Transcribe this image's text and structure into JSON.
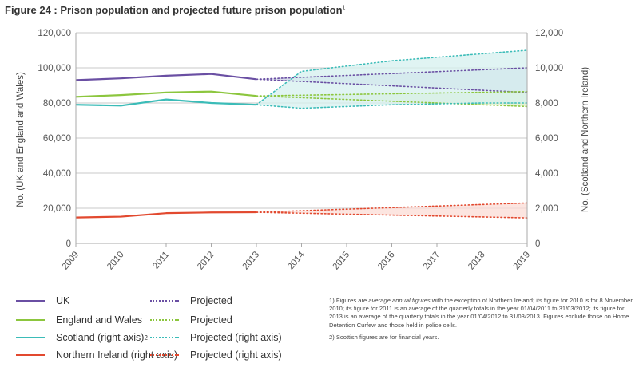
{
  "figure": {
    "title": "Figure 24 : Prison population and projected future prison population",
    "title_sup": "1"
  },
  "chart_data": {
    "type": "line",
    "title": "Figure 24 : Prison population and projected future prison population",
    "x": [
      2009,
      2010,
      2011,
      2012,
      2013,
      2014,
      2015,
      2016,
      2017,
      2018,
      2019
    ],
    "x_tick_labels": [
      "2009",
      "2010",
      "2011",
      "2012",
      "2013",
      "2014",
      "2015",
      "2016",
      "2017",
      "2018",
      "2019"
    ],
    "ylabel_left": "No. (UK and England and Wales)",
    "ylabel_right": "No. (Scotland and Northern Ireland)",
    "ylim_left": [
      0,
      120000
    ],
    "ylim_right": [
      0,
      12000
    ],
    "y_ticks_left": [
      "0",
      "20,000",
      "40,000",
      "60,000",
      "80,000",
      "100,000",
      "120,000"
    ],
    "y_ticks_right": [
      "0",
      "2,000",
      "4,000",
      "6,000",
      "8,000",
      "10,000",
      "12,000"
    ],
    "grid": true,
    "colors": {
      "uk": "#6a4fa3",
      "ew": "#8cc63e",
      "scot": "#3bbcb8",
      "ni": "#e2492f",
      "grid": "#c9c9c9",
      "uk_band": "#c8cde2",
      "ew_band": "#dcefc6",
      "scot_band": "#d6f0ef",
      "ni_band": "#fbdcd6"
    },
    "series": [
      {
        "key": "uk",
        "name": "UK",
        "axis": "left",
        "x": [
          2009,
          2010,
          2011,
          2012,
          2013
        ],
        "values": [
          93000,
          94000,
          95500,
          96500,
          93500
        ],
        "projected": {
          "name": "Projected",
          "x": [
            2013,
            2019
          ],
          "upper": [
            93500,
            100000
          ],
          "lower": [
            93500,
            86000
          ]
        }
      },
      {
        "key": "ew",
        "name": "England and Wales",
        "axis": "left",
        "x": [
          2009,
          2010,
          2011,
          2012,
          2013
        ],
        "values": [
          83500,
          84500,
          86000,
          86500,
          84000
        ],
        "projected": {
          "name": "Projected",
          "x": [
            2013,
            2019
          ],
          "upper": [
            84000,
            86500
          ],
          "lower": [
            84000,
            78000
          ]
        }
      },
      {
        "key": "scot",
        "name": "Scotland (right axis)",
        "name_sup": "2",
        "axis": "right",
        "x": [
          2009,
          2010,
          2011,
          2012,
          2013
        ],
        "values": [
          7900,
          7850,
          8200,
          8000,
          7900
        ],
        "projected": {
          "name": "Projected (right axis)",
          "x": [
            2013,
            2014,
            2015,
            2016,
            2017,
            2018,
            2019
          ],
          "upper": [
            7900,
            9800,
            10100,
            10400,
            10600,
            10800,
            11000
          ],
          "lower": [
            7900,
            7700,
            7800,
            7900,
            7950,
            8000,
            8000
          ]
        }
      },
      {
        "key": "ni",
        "name": "Northern Ireland (right axis)",
        "axis": "right",
        "x": [
          2009,
          2010,
          2011,
          2012,
          2013
        ],
        "values": [
          1470,
          1520,
          1720,
          1760,
          1770
        ],
        "projected": {
          "name": "Projected (right axis)",
          "x": [
            2013,
            2019
          ],
          "upper": [
            1770,
            2300
          ],
          "lower": [
            1770,
            1450
          ]
        }
      }
    ]
  },
  "legend": {
    "uk": "UK",
    "ew": "England and Wales",
    "scot": "Scotland (right axis)",
    "scot_sup": "2",
    "ni": "Northern Ireland (right axis)",
    "proj": "Projected",
    "proj_ew": "Projected",
    "proj_scot": "Projected (right axis)",
    "proj_ni": "Projected (right axis)"
  },
  "notes": {
    "n1_a": "1) Figures are ",
    "n1_em": "average annual figures",
    "n1_b": " with the exception of Northern Ireland; its figure for 2010 is for 8 November 2010; its figure for 2011 is an average of the quarterly totals in the year 01/04/2011 to 31/03/2012; its figure for 2013 is an average of the quarterly totals in the year 01/04/2012 to 31/03/2013. Figures exclude those on Home Detention Curfew and those held in police cells.",
    "n2": "2) Scottish figures are for financial years."
  }
}
